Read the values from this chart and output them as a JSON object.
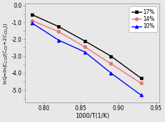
{
  "series": [
    {
      "x": [
        0.785,
        0.82,
        0.855,
        0.89,
        0.93
      ],
      "y": [
        -0.55,
        -1.25,
        -2.1,
        -3.0,
        -4.3
      ],
      "color": "black",
      "marker": "s",
      "label": "17%",
      "markersize": 3.5
    },
    {
      "x": [
        0.785,
        0.82,
        0.855,
        0.89,
        0.93
      ],
      "y": [
        -0.9,
        -1.55,
        -2.45,
        -3.45,
        -4.6
      ],
      "color": "#f07070",
      "marker": "o",
      "label": "14%",
      "markersize": 3.5
    },
    {
      "x": [
        0.785,
        0.82,
        0.855,
        0.89,
        0.93
      ],
      "y": [
        -1.05,
        -2.05,
        -2.75,
        -4.0,
        -5.3
      ],
      "color": "blue",
      "marker": "^",
      "label": "10%",
      "markersize": 3.5
    }
  ],
  "xlabel": "1000/T(1/K)",
  "xlim": [
    0.775,
    0.955
  ],
  "ylim": [
    -5.75,
    0.1
  ],
  "xticks": [
    0.8,
    0.85,
    0.9,
    0.95
  ],
  "yticks": [
    0.0,
    -0.5,
    -1.0,
    -1.5,
    -2.0,
    -2.5,
    -3.0,
    -3.5,
    -4.0,
    -4.5,
    -5.0,
    -5.5
  ],
  "yticklabels": [
    "0.0",
    "",
    "-1.0",
    "",
    "-2.0",
    "",
    "-3.0",
    "",
    "-4.0",
    "",
    "-5.0",
    ""
  ],
  "background_color": "#e8e8e8",
  "plot_bg_color": "#e8e8e8",
  "legend_loc": "upper right",
  "linewidth": 1.0,
  "tick_labelsize": 5.5,
  "xlabel_fontsize": 6.0,
  "ylabel_fontsize": 5.0
}
